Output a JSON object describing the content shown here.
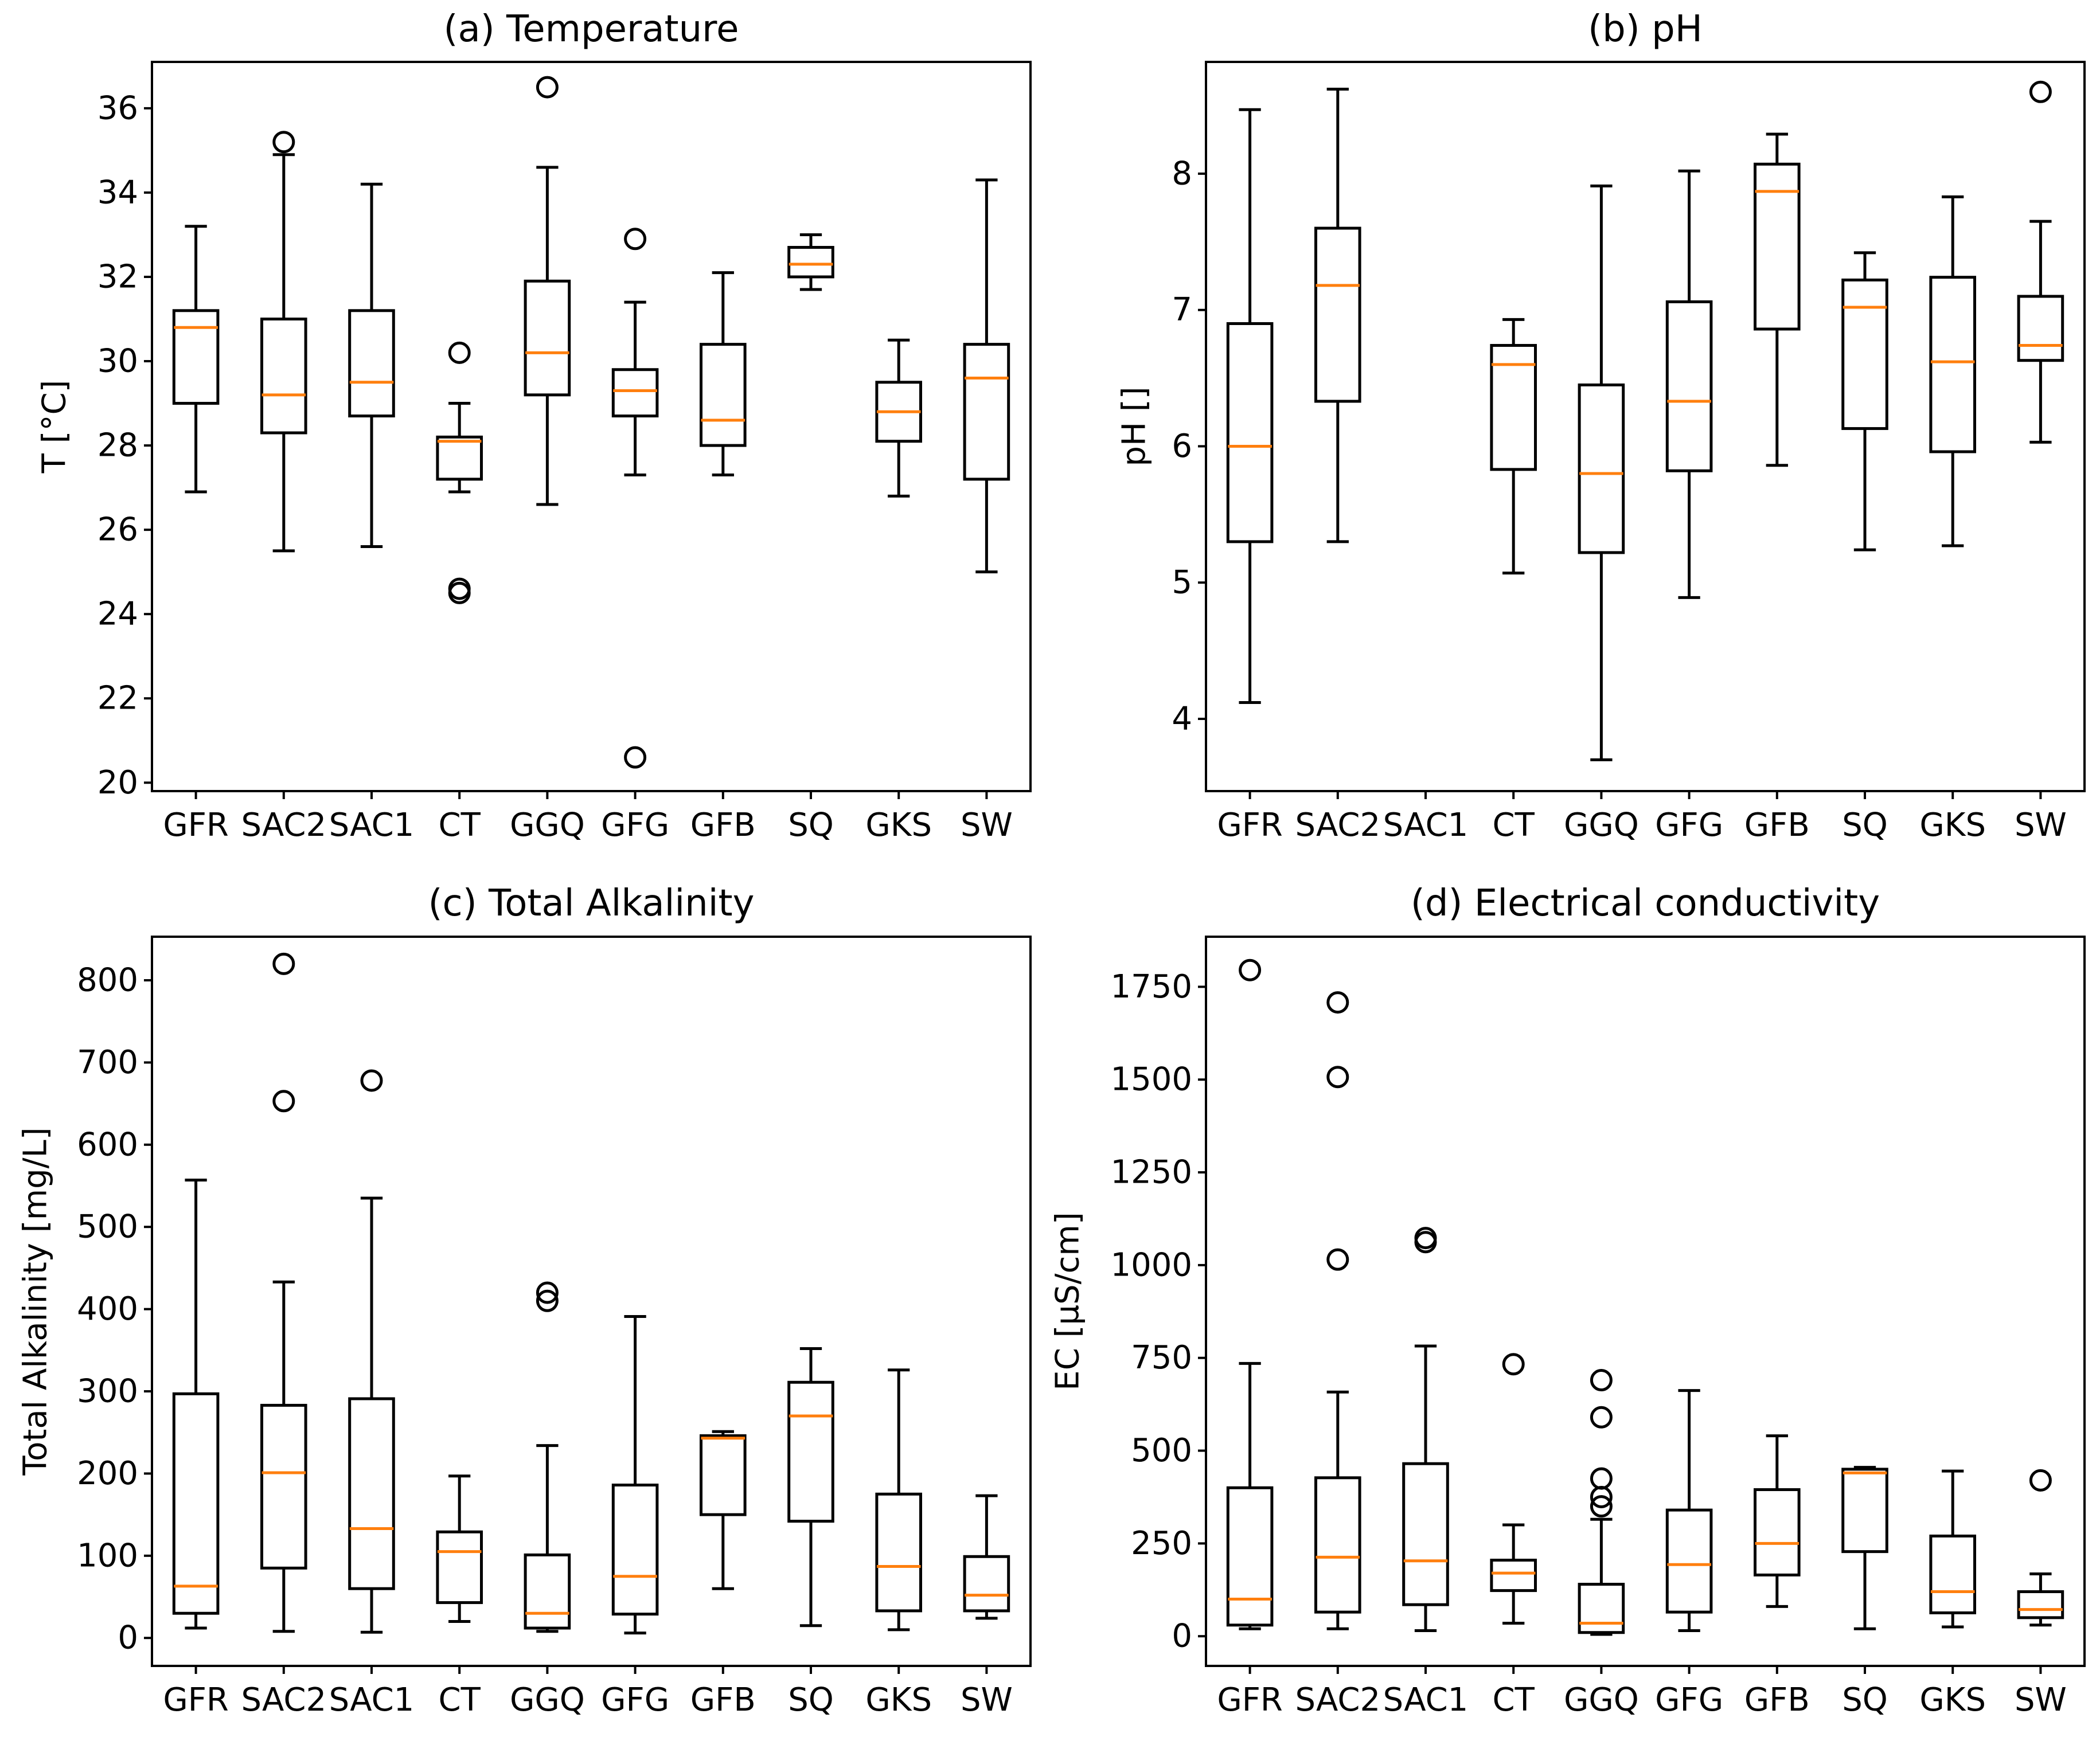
{
  "figure": {
    "panel_count": 4
  },
  "chart_data": [
    {
      "id": "a",
      "type": "box",
      "title": "(a) Temperature",
      "ylabel": "T [°C]",
      "xlabel": "",
      "ylim": [
        19.8,
        37.1
      ],
      "yticks": [
        20,
        22,
        24,
        26,
        28,
        30,
        32,
        34,
        36
      ],
      "ytick_labels": [
        "20",
        "22",
        "24",
        "26",
        "28",
        "30",
        "32",
        "34",
        "36"
      ],
      "categories": [
        "GFR",
        "SAC2",
        "SAC1",
        "CT",
        "GGQ",
        "GFG",
        "GFB",
        "SQ",
        "GKS",
        "SW"
      ],
      "boxes": [
        {
          "category": "GFR",
          "whislo": 26.9,
          "q1": 29.0,
          "med": 30.8,
          "q3": 31.2,
          "whishi": 33.2,
          "fliers": []
        },
        {
          "category": "SAC2",
          "whislo": 25.5,
          "q1": 28.3,
          "med": 29.2,
          "q3": 31.0,
          "whishi": 34.9,
          "fliers": [
            35.2
          ]
        },
        {
          "category": "SAC1",
          "whislo": 25.6,
          "q1": 28.7,
          "med": 29.5,
          "q3": 31.2,
          "whishi": 34.2,
          "fliers": []
        },
        {
          "category": "CT",
          "whislo": 26.9,
          "q1": 27.2,
          "med": 28.1,
          "q3": 28.2,
          "whishi": 29.0,
          "fliers": [
            30.2,
            24.6,
            24.5
          ]
        },
        {
          "category": "GGQ",
          "whislo": 26.6,
          "q1": 29.2,
          "med": 30.2,
          "q3": 31.9,
          "whishi": 34.6,
          "fliers": [
            36.5
          ]
        },
        {
          "category": "GFG",
          "whislo": 27.3,
          "q1": 28.7,
          "med": 29.3,
          "q3": 29.8,
          "whishi": 31.4,
          "fliers": [
            32.9,
            20.6
          ]
        },
        {
          "category": "GFB",
          "whislo": 27.3,
          "q1": 28.0,
          "med": 28.6,
          "q3": 30.4,
          "whishi": 32.1,
          "fliers": []
        },
        {
          "category": "SQ",
          "whislo": 31.7,
          "q1": 32.0,
          "med": 32.3,
          "q3": 32.7,
          "whishi": 33.0,
          "fliers": []
        },
        {
          "category": "GKS",
          "whislo": 26.8,
          "q1": 28.1,
          "med": 28.8,
          "q3": 29.5,
          "whishi": 30.5,
          "fliers": []
        },
        {
          "category": "SW",
          "whislo": 25.0,
          "q1": 27.2,
          "med": 29.6,
          "q3": 30.4,
          "whishi": 34.3,
          "fliers": []
        }
      ]
    },
    {
      "id": "b",
      "type": "box",
      "title": "(b) pH",
      "ylabel": "pH []",
      "xlabel": "",
      "ylim": [
        3.47,
        8.82
      ],
      "yticks": [
        4,
        5,
        6,
        7,
        8
      ],
      "ytick_labels": [
        "4",
        "5",
        "6",
        "7",
        "8"
      ],
      "categories": [
        "GFR",
        "SAC2",
        "SAC1",
        "CT",
        "GGQ",
        "GFG",
        "GFB",
        "SQ",
        "GKS",
        "SW"
      ],
      "boxes": [
        {
          "category": "GFR",
          "whislo": 4.12,
          "q1": 5.3,
          "med": 6.0,
          "q3": 6.9,
          "whishi": 8.47,
          "fliers": []
        },
        {
          "category": "SAC2",
          "whislo": 5.3,
          "q1": 6.33,
          "med": 7.18,
          "q3": 7.6,
          "whishi": 8.62,
          "fliers": []
        },
        {
          "category": "SAC1",
          "empty": true,
          "fliers": []
        },
        {
          "category": "CT",
          "whislo": 5.07,
          "q1": 5.83,
          "med": 6.6,
          "q3": 6.74,
          "whishi": 6.93,
          "fliers": []
        },
        {
          "category": "GGQ",
          "whislo": 3.7,
          "q1": 5.22,
          "med": 5.8,
          "q3": 6.45,
          "whishi": 7.91,
          "fliers": []
        },
        {
          "category": "GFG",
          "whislo": 4.89,
          "q1": 5.82,
          "med": 6.33,
          "q3": 7.06,
          "whishi": 8.02,
          "fliers": []
        },
        {
          "category": "GFB",
          "whislo": 5.86,
          "q1": 6.86,
          "med": 7.87,
          "q3": 8.07,
          "whishi": 8.29,
          "fliers": []
        },
        {
          "category": "SQ",
          "whislo": 5.24,
          "q1": 6.13,
          "med": 7.02,
          "q3": 7.22,
          "whishi": 7.42,
          "fliers": []
        },
        {
          "category": "GKS",
          "whislo": 5.27,
          "q1": 5.96,
          "med": 6.62,
          "q3": 7.24,
          "whishi": 7.83,
          "fliers": []
        },
        {
          "category": "SW",
          "whislo": 6.03,
          "q1": 6.63,
          "med": 6.74,
          "q3": 7.1,
          "whishi": 7.65,
          "fliers": [
            8.6
          ]
        }
      ]
    },
    {
      "id": "c",
      "type": "box",
      "title": "(c) Total Alkalinity",
      "ylabel": "Total Alkalinity [mg/L]",
      "xlabel": "",
      "ylim": [
        -34,
        853
      ],
      "yticks": [
        0,
        100,
        200,
        300,
        400,
        500,
        600,
        700,
        800
      ],
      "ytick_labels": [
        "0",
        "100",
        "200",
        "300",
        "400",
        "500",
        "600",
        "700",
        "800"
      ],
      "categories": [
        "GFR",
        "SAC2",
        "SAC1",
        "CT",
        "GGQ",
        "GFG",
        "GFB",
        "SQ",
        "GKS",
        "SW"
      ],
      "boxes": [
        {
          "category": "GFR",
          "whislo": 12,
          "q1": 30,
          "med": 63,
          "q3": 297,
          "whishi": 557,
          "fliers": []
        },
        {
          "category": "SAC2",
          "whislo": 8,
          "q1": 85,
          "med": 201,
          "q3": 283,
          "whishi": 433,
          "fliers": [
            820,
            653
          ]
        },
        {
          "category": "SAC1",
          "whislo": 7,
          "q1": 60,
          "med": 133,
          "q3": 291,
          "whishi": 535,
          "fliers": [
            678
          ]
        },
        {
          "category": "CT",
          "whislo": 20,
          "q1": 43,
          "med": 105,
          "q3": 129,
          "whishi": 197,
          "fliers": []
        },
        {
          "category": "GGQ",
          "whislo": 8,
          "q1": 12,
          "med": 30,
          "q3": 101,
          "whishi": 234,
          "fliers": [
            420,
            410
          ]
        },
        {
          "category": "GFG",
          "whislo": 6,
          "q1": 29,
          "med": 75,
          "q3": 186,
          "whishi": 391,
          "fliers": []
        },
        {
          "category": "GFB",
          "whislo": 60,
          "q1": 150,
          "med": 243,
          "q3": 246,
          "whishi": 251,
          "fliers": []
        },
        {
          "category": "SQ",
          "whislo": 15,
          "q1": 142,
          "med": 270,
          "q3": 311,
          "whishi": 352,
          "fliers": []
        },
        {
          "category": "GKS",
          "whislo": 10,
          "q1": 33,
          "med": 87,
          "q3": 175,
          "whishi": 326,
          "fliers": []
        },
        {
          "category": "SW",
          "whislo": 24,
          "q1": 33,
          "med": 52,
          "q3": 99,
          "whishi": 173,
          "fliers": []
        }
      ]
    },
    {
      "id": "d",
      "type": "box",
      "title": "(d) Electrical conductivity",
      "ylabel": "EC [µS/cm]",
      "xlabel": "",
      "ylim": [
        -80,
        1885
      ],
      "yticks": [
        0,
        250,
        500,
        750,
        1000,
        1250,
        1500,
        1750
      ],
      "ytick_labels": [
        "0",
        "250",
        "500",
        "750",
        "1000",
        "1250",
        "1500",
        "1750"
      ],
      "categories": [
        "GFR",
        "SAC2",
        "SAC1",
        "CT",
        "GGQ",
        "GFG",
        "GFB",
        "SQ",
        "GKS",
        "SW"
      ],
      "boxes": [
        {
          "category": "GFR",
          "whislo": 20,
          "q1": 30,
          "med": 100,
          "q3": 400,
          "whishi": 735,
          "fliers": [
            1795
          ]
        },
        {
          "category": "SAC2",
          "whislo": 20,
          "q1": 65,
          "med": 213,
          "q3": 427,
          "whishi": 658,
          "fliers": [
            1708,
            1507,
            1015
          ]
        },
        {
          "category": "SAC1",
          "whislo": 15,
          "q1": 85,
          "med": 203,
          "q3": 465,
          "whishi": 782,
          "fliers": [
            1073,
            1062
          ]
        },
        {
          "category": "CT",
          "whislo": 35,
          "q1": 123,
          "med": 170,
          "q3": 205,
          "whishi": 300,
          "fliers": [
            733
          ]
        },
        {
          "category": "GGQ",
          "whislo": 5,
          "q1": 10,
          "med": 35,
          "q3": 140,
          "whishi": 315,
          "fliers": [
            690,
            590,
            425,
            375,
            350
          ]
        },
        {
          "category": "GFG",
          "whislo": 15,
          "q1": 65,
          "med": 193,
          "q3": 340,
          "whishi": 662,
          "fliers": []
        },
        {
          "category": "GFB",
          "whislo": 80,
          "q1": 165,
          "med": 250,
          "q3": 395,
          "whishi": 540,
          "fliers": []
        },
        {
          "category": "SQ",
          "whislo": 20,
          "q1": 228,
          "med": 440,
          "q3": 450,
          "whishi": 455,
          "fliers": []
        },
        {
          "category": "GKS",
          "whislo": 25,
          "q1": 63,
          "med": 120,
          "q3": 270,
          "whishi": 445,
          "fliers": []
        },
        {
          "category": "SW",
          "whislo": 30,
          "q1": 50,
          "med": 72,
          "q3": 120,
          "whishi": 168,
          "fliers": [
            420
          ]
        }
      ]
    }
  ]
}
